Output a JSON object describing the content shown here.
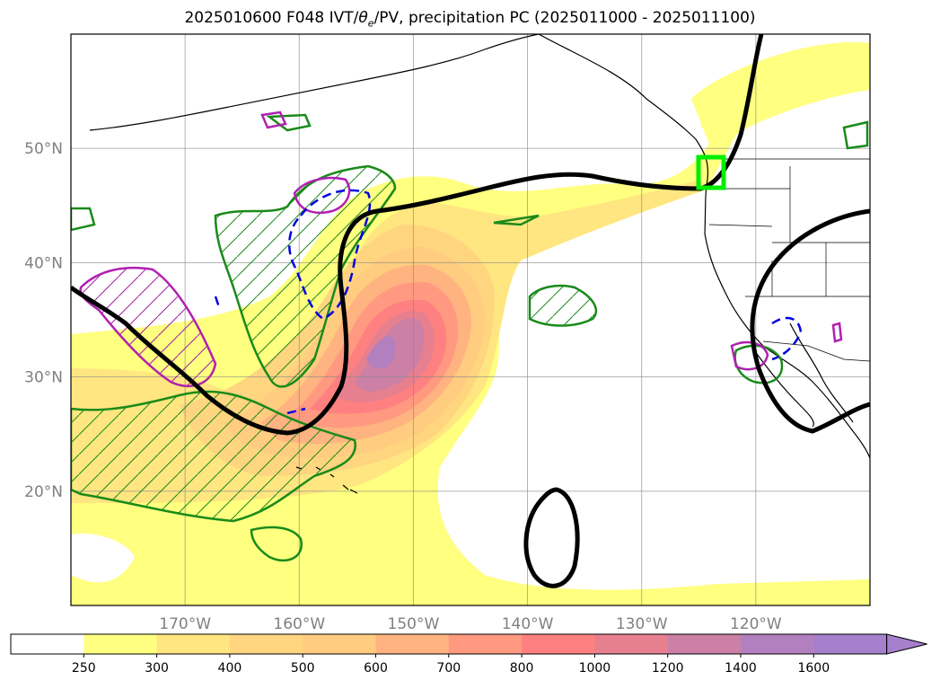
{
  "title": {
    "prefix": "2025010600 F048 IVT/",
    "theta": "θ",
    "theta_sub": "e",
    "suffix": "/PV, precipitation PC (2025011000 - 2025011100)"
  },
  "map": {
    "projection": "plate-carree",
    "lon_range": [
      -180,
      -110
    ],
    "lat_range": [
      10,
      60
    ],
    "gridlines": true,
    "lon_ticks": [
      {
        "lon": -170,
        "label": "170°W"
      },
      {
        "lon": -160,
        "label": "160°W"
      },
      {
        "lon": -150,
        "label": "150°W"
      },
      {
        "lon": -140,
        "label": "140°W"
      },
      {
        "lon": -130,
        "label": "130°W"
      },
      {
        "lon": -120,
        "label": "120°W"
      }
    ],
    "lat_ticks": [
      {
        "lat": 20,
        "label": "20°N"
      },
      {
        "lat": 30,
        "label": "30°N"
      },
      {
        "lat": 40,
        "label": "40°N"
      },
      {
        "lat": 50,
        "label": "50°N"
      }
    ],
    "ivt_max_center": {
      "lon": -152,
      "lat": 32,
      "value_range": [
        1400,
        1600
      ]
    },
    "precip_box": {
      "lon": [
        -125,
        -123
      ],
      "lat": [
        47,
        49
      ],
      "color": "#00ee00"
    }
  },
  "colorbar": {
    "extend": "max",
    "levels": [
      {
        "label": "250"
      },
      {
        "label": "300"
      },
      {
        "label": "400"
      },
      {
        "label": "500"
      },
      {
        "label": "600"
      },
      {
        "label": "700"
      },
      {
        "label": "800"
      },
      {
        "label": "1000"
      },
      {
        "label": "1200"
      },
      {
        "label": "1400"
      },
      {
        "label": "1600"
      }
    ],
    "colors": [
      "#ffffff",
      "#ffff80",
      "#ffe680",
      "#ffd580",
      "#ffcc80",
      "#ffb380",
      "#ff9980",
      "#ff8080",
      "#e6808f",
      "#cc80a6",
      "#b380bf",
      "#a680cc"
    ]
  },
  "chart_data": {
    "type": "heatmap",
    "field": "IVT",
    "overlays": [
      "theta_e contours (black)",
      "PV contours (magenta/blue/green)",
      "precipitation box"
    ]
  }
}
